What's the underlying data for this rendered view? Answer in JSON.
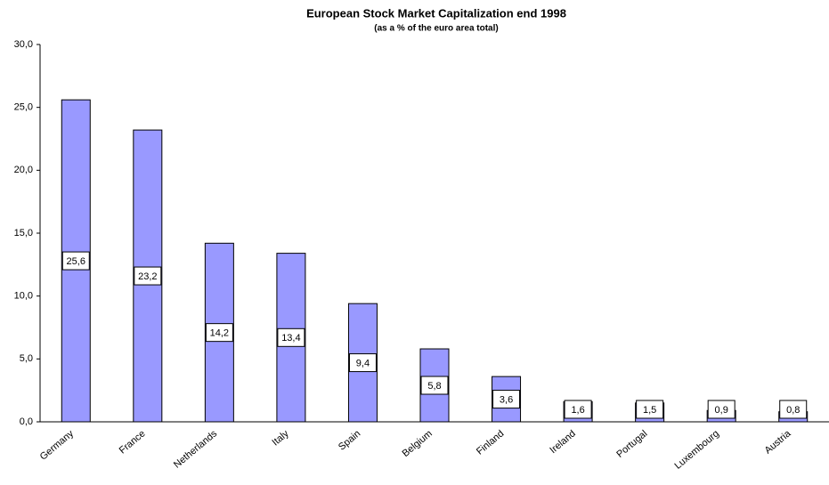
{
  "chart_data": {
    "type": "bar",
    "title": "European Stock Market Capitalization end 1998",
    "subtitle": "(as a % of the euro area total)",
    "categories": [
      "Germany",
      "France",
      "Netherlands",
      "Italy",
      "Spain",
      "Belgium",
      "Finland",
      "Ireland",
      "Portugal",
      "Luxembourg",
      "Austria"
    ],
    "values": [
      25.6,
      23.2,
      14.2,
      13.4,
      9.4,
      5.8,
      3.6,
      1.6,
      1.5,
      0.9,
      0.8
    ],
    "value_labels": [
      "25,6",
      "23,2",
      "14,2",
      "13,4",
      "9,4",
      "5,8",
      "3,6",
      "1,6",
      "1,5",
      "0,9",
      "0,8"
    ],
    "color": "#9999ff",
    "ylim": [
      0,
      30
    ],
    "yticks": [
      {
        "value": 0,
        "label": "0,0"
      },
      {
        "value": 5,
        "label": "5,0"
      },
      {
        "value": 10,
        "label": "10,0"
      },
      {
        "value": 15,
        "label": "15,0"
      },
      {
        "value": 20,
        "label": "20,0"
      },
      {
        "value": 25,
        "label": "25,0"
      },
      {
        "value": 30,
        "label": "30,0"
      }
    ],
    "grid": false
  }
}
